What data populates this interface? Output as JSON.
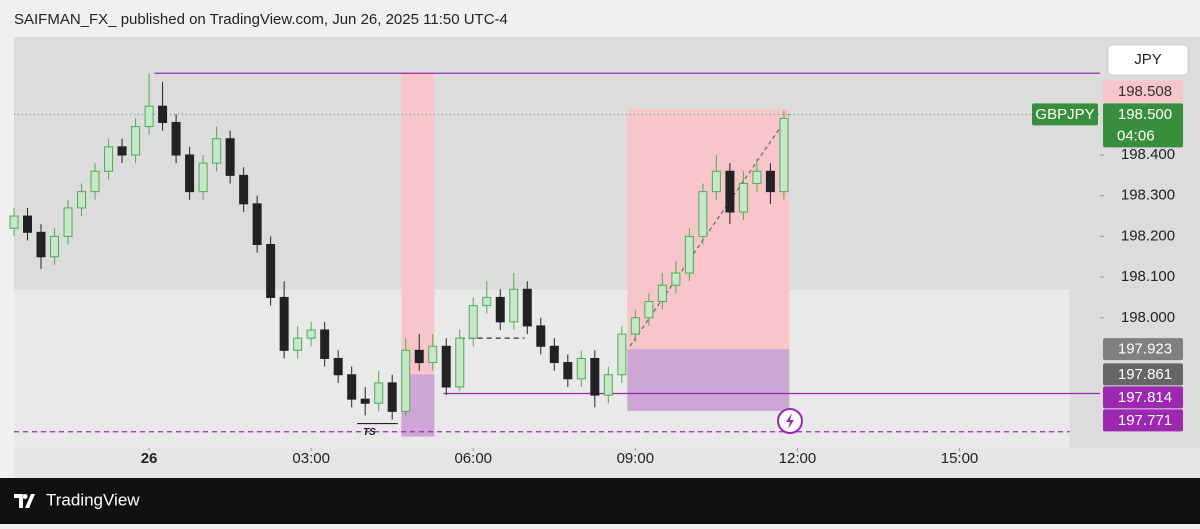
{
  "header": "SAIFMAN_FX_ published on TradingView.com, Jun 26, 2025 11:50 UTC-4",
  "footer": "TradingView",
  "chart_data": {
    "type": "candlestick",
    "currency": "JPY",
    "xlim": [
      -2.5,
      17.6
    ],
    "ylim": [
      197.68,
      198.69
    ],
    "xticks": [
      {
        "value": 0,
        "label": "26"
      },
      {
        "value": 3,
        "label": "03:00"
      },
      {
        "value": 6,
        "label": "06:00"
      },
      {
        "value": 9,
        "label": "09:00"
      },
      {
        "value": 12,
        "label": "12:00"
      },
      {
        "value": 15,
        "label": "15:00"
      }
    ],
    "yticks": [
      {
        "value": 198.0,
        "label": "198.000"
      },
      {
        "value": 198.1,
        "label": "198.100"
      },
      {
        "value": 198.2,
        "label": "198.200"
      },
      {
        "value": 198.3,
        "label": "198.300"
      },
      {
        "value": 198.4,
        "label": "198.400"
      }
    ],
    "up_color": "#4caf50",
    "down_color": "#222222",
    "x": [
      -2.5,
      -2.25,
      -2,
      -1.75,
      -1.5,
      -1.25,
      -1,
      -0.75,
      -0.5,
      -0.25,
      0,
      0.25,
      0.5,
      0.75,
      1,
      1.25,
      1.5,
      1.75,
      2,
      2.25,
      2.5,
      2.75,
      3,
      3.25,
      3.5,
      3.75,
      4,
      4.25,
      4.5,
      4.75,
      5,
      5.25,
      5.5,
      5.75,
      6,
      6.25,
      6.5,
      6.75,
      7,
      7.25,
      7.5,
      7.75,
      8,
      8.25,
      8.5,
      8.75,
      9,
      9.25,
      9.5,
      9.75,
      10,
      10.25,
      10.5,
      10.75,
      11,
      11.25,
      11.5,
      11.75
    ],
    "open": [
      198.22,
      198.25,
      198.21,
      198.15,
      198.2,
      198.27,
      198.31,
      198.36,
      198.42,
      198.4,
      198.47,
      198.52,
      198.48,
      198.4,
      198.31,
      198.38,
      198.44,
      198.35,
      198.28,
      198.18,
      198.05,
      197.92,
      197.95,
      197.97,
      197.9,
      197.86,
      197.8,
      197.79,
      197.84,
      197.77,
      197.92,
      197.89,
      197.93,
      197.83,
      197.95,
      198.03,
      198.05,
      197.99,
      198.07,
      197.98,
      197.93,
      197.89,
      197.85,
      197.9,
      197.81,
      197.86,
      197.96,
      198.0,
      198.04,
      198.08,
      198.11,
      198.2,
      198.31,
      198.36,
      198.26,
      198.33,
      198.36,
      198.31
    ],
    "high": [
      198.27,
      198.27,
      198.23,
      198.22,
      198.29,
      198.33,
      198.38,
      198.44,
      198.44,
      198.49,
      198.6,
      198.58,
      198.5,
      198.42,
      198.4,
      198.47,
      198.46,
      198.37,
      198.3,
      198.2,
      198.09,
      197.98,
      197.99,
      197.99,
      197.92,
      197.88,
      197.83,
      197.87,
      197.86,
      197.95,
      197.96,
      197.96,
      197.95,
      197.97,
      198.05,
      198.09,
      198.07,
      198.11,
      198.09,
      198.0,
      197.95,
      197.91,
      197.92,
      197.92,
      197.88,
      197.98,
      198.02,
      198.06,
      198.11,
      198.14,
      198.22,
      198.33,
      198.4,
      198.38,
      198.36,
      198.39,
      198.38,
      198.51
    ],
    "low": [
      198.2,
      198.19,
      198.12,
      198.13,
      198.18,
      198.25,
      198.29,
      198.34,
      198.38,
      198.38,
      198.45,
      198.46,
      198.38,
      198.29,
      198.29,
      198.36,
      198.33,
      198.26,
      198.16,
      198.03,
      197.9,
      197.9,
      197.93,
      197.88,
      197.84,
      197.78,
      197.76,
      197.77,
      197.75,
      197.76,
      197.87,
      197.87,
      197.81,
      197.82,
      197.93,
      198.01,
      197.97,
      197.97,
      197.96,
      197.91,
      197.87,
      197.83,
      197.83,
      197.78,
      197.79,
      197.84,
      197.94,
      197.98,
      198.02,
      198.06,
      198.09,
      198.18,
      198.29,
      198.23,
      198.24,
      198.31,
      198.28,
      198.29
    ],
    "close": [
      198.25,
      198.21,
      198.15,
      198.2,
      198.27,
      198.31,
      198.36,
      198.42,
      198.4,
      198.47,
      198.52,
      198.48,
      198.4,
      198.31,
      198.38,
      198.44,
      198.35,
      198.28,
      198.18,
      198.05,
      197.92,
      197.95,
      197.97,
      197.9,
      197.86,
      197.8,
      197.79,
      197.84,
      197.77,
      197.92,
      197.89,
      197.93,
      197.83,
      197.95,
      198.03,
      198.05,
      197.99,
      198.07,
      197.98,
      197.93,
      197.89,
      197.85,
      197.9,
      197.81,
      197.86,
      197.96,
      198.0,
      198.04,
      198.08,
      198.11,
      198.2,
      198.31,
      198.36,
      198.26,
      198.33,
      198.36,
      198.31,
      198.49
    ],
    "zones": [
      {
        "x": [
          -2.5,
          17.04
        ],
        "y": [
          197.68,
          198.069
        ],
        "color": "#e9e9e9"
      },
      {
        "x": [
          4.67,
          5.28
        ],
        "y": [
          197.861,
          198.603
        ],
        "color": "#f7c5ca"
      },
      {
        "x": [
          4.67,
          5.28
        ],
        "y": [
          197.708,
          197.861
        ],
        "color": "#cda6d6"
      },
      {
        "x": [
          8.85,
          11.85
        ],
        "y": [
          197.923,
          198.512
        ],
        "color": "#f7c5ca"
      },
      {
        "x": [
          8.85,
          11.85
        ],
        "y": [
          197.771,
          197.923
        ],
        "color": "#cda6d6"
      }
    ],
    "levels": [
      {
        "value": 198.601,
        "from": 0.1,
        "to": 17.6,
        "color": "#9c27b0",
        "style": "solid"
      },
      {
        "value": 197.814,
        "from": 5.45,
        "to": 17.6,
        "color": "#9c27b0",
        "style": "solid"
      },
      {
        "value": 197.72,
        "from": -2.5,
        "to": 17.04,
        "color": "#9c27b0",
        "style": "dashed"
      },
      {
        "value": 197.95,
        "from": 5.75,
        "to": 6.95,
        "color": "#333333",
        "style": "dashed"
      },
      {
        "value": 197.74,
        "from": 3.85,
        "to": 4.6,
        "color": "#222222",
        "style": "solid",
        "label": "TS"
      }
    ],
    "trend_line": {
      "x": [
        8.9,
        11.85
      ],
      "y": [
        197.93,
        198.5
      ]
    },
    "badges": [
      {
        "value": 198.508,
        "label": "198.508",
        "color": "#f7c5ca",
        "text_color": "#333333"
      },
      {
        "value": 198.5,
        "label": "198.500",
        "color": "#388e3c",
        "text_color": "#ffffff",
        "symbol": "GBPJPY",
        "countdown": "04:06"
      },
      {
        "value": 197.923,
        "label": "197.923",
        "color": "#808080",
        "text_color": "#ffffff"
      },
      {
        "value": 197.861,
        "label": "197.861",
        "color": "#666666",
        "text_color": "#ffffff"
      },
      {
        "value": 197.814,
        "label": "197.814",
        "color": "#9c27b0",
        "text_color": "#ffffff"
      },
      {
        "value": 197.771,
        "label": "197.771",
        "color": "#9c27b0",
        "text_color": "#ffffff"
      }
    ]
  }
}
